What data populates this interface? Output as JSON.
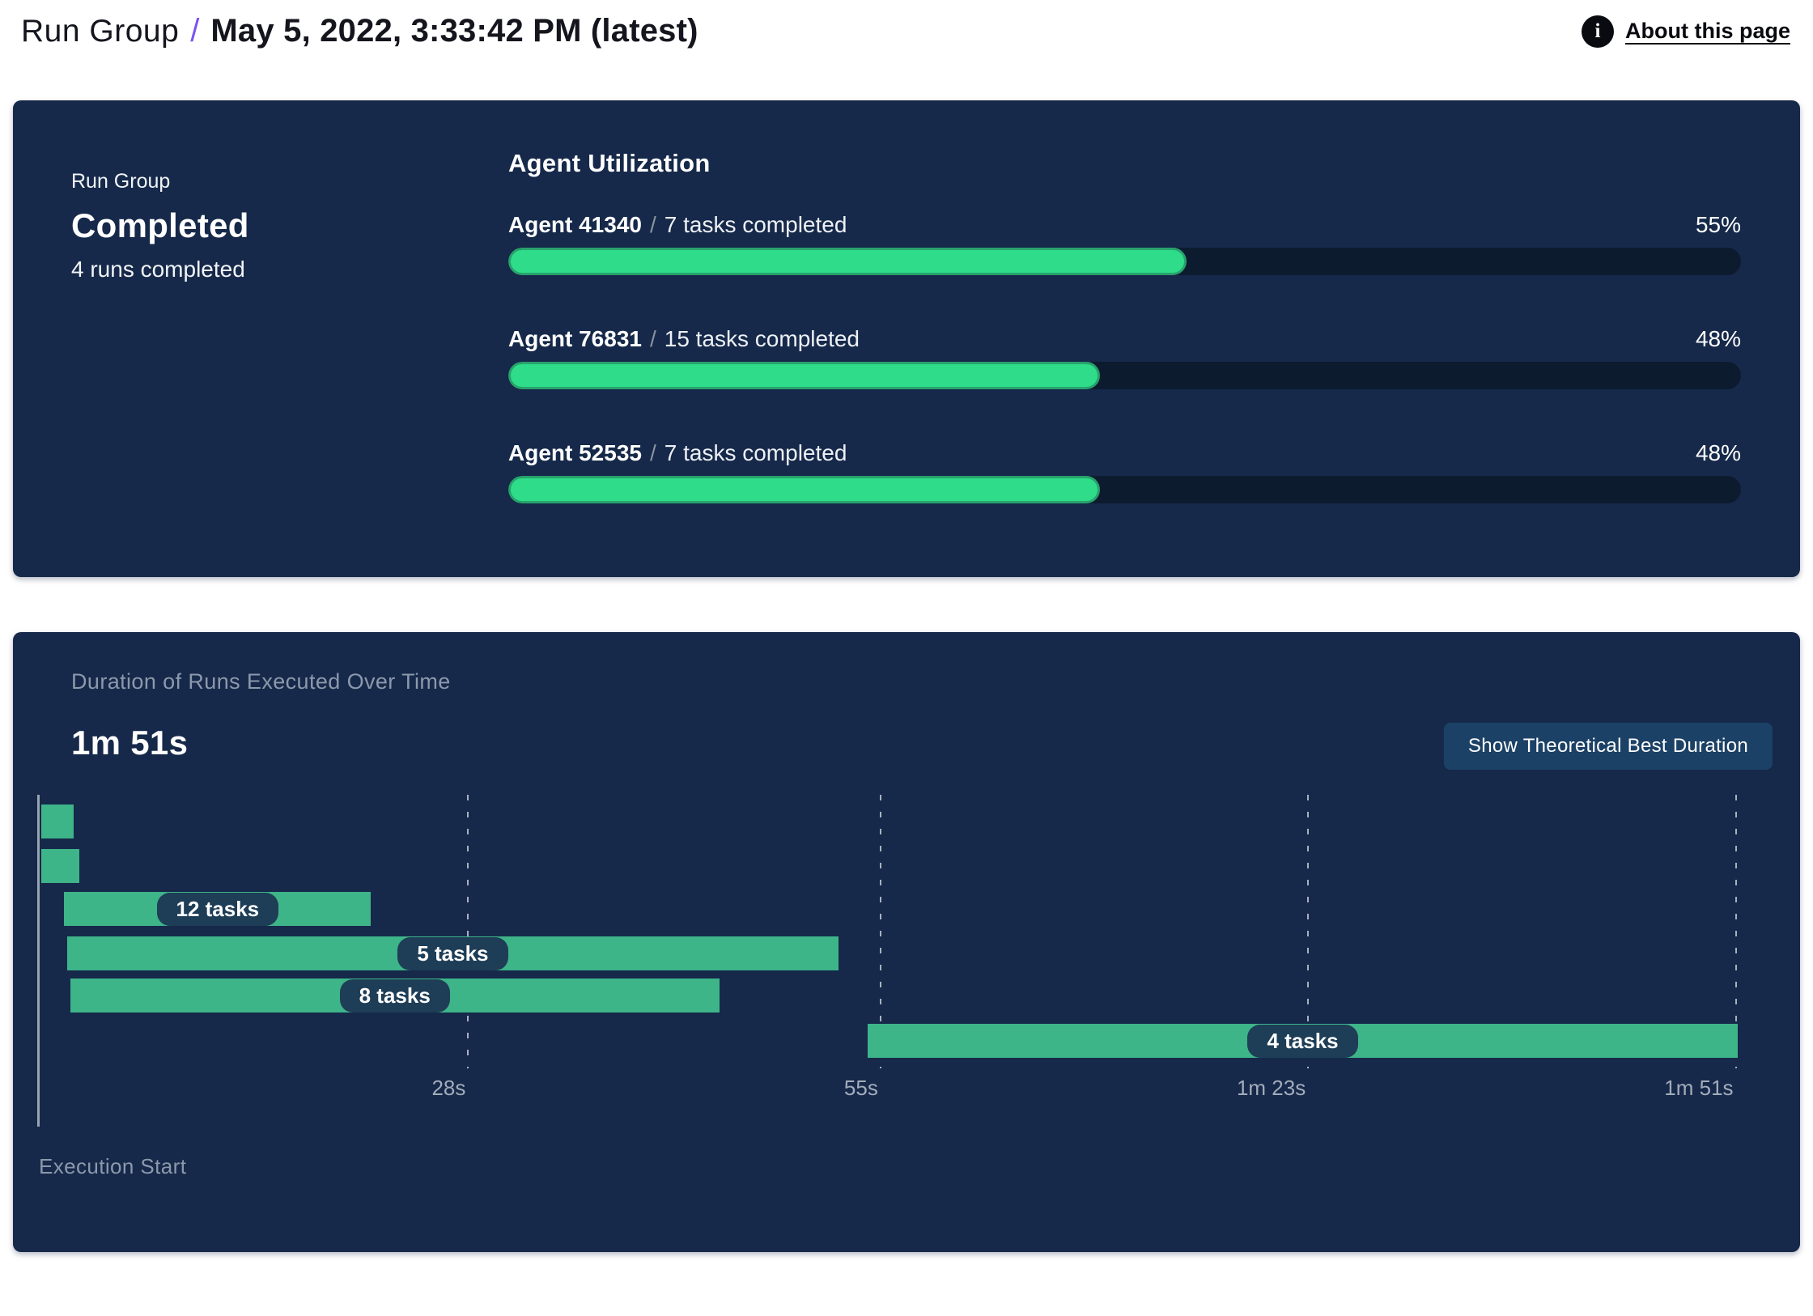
{
  "header": {
    "breadcrumb_root": "Run Group",
    "separator": "/",
    "title": "May 5, 2022, 3:33:42 PM (latest)",
    "info_icon_glyph": "i",
    "about_link": "About this page"
  },
  "colors": {
    "panel_navy": "#16294A",
    "progress_track": "#0D1B2F",
    "progress_fill_green": "#2EDC8A",
    "progress_fill_border": "#28A26C",
    "gantt_bar_green": "#3EB489",
    "badge_navy": "#1E3D56",
    "button_navy": "#1C4166",
    "breadcrumb_slash_purple": "#7C52F4",
    "muted_gray": "#8C99AC"
  },
  "summary_panel": {
    "label": "Run Group",
    "status": "Completed",
    "runs_completed": "4 runs completed",
    "utilization_title": "Agent Utilization",
    "agents": [
      {
        "name": "Agent 41340",
        "separator": "/",
        "tasks": "7 tasks completed",
        "percent": "55%",
        "value": 55
      },
      {
        "name": "Agent 76831",
        "separator": "/",
        "tasks": "15 tasks completed",
        "percent": "48%",
        "value": 48
      },
      {
        "name": "Agent 52535",
        "separator": "/",
        "tasks": "7 tasks completed",
        "percent": "48%",
        "value": 48
      }
    ]
  },
  "duration_panel": {
    "title": "Duration of Runs Executed Over Time",
    "total_duration": "1m 51s",
    "button_label": "Show Theoretical Best Duration",
    "origin_label": "Execution Start",
    "ticks": [
      {
        "label": "28s",
        "seconds": 28
      },
      {
        "label": "55s",
        "seconds": 55
      },
      {
        "label": "1m 23s",
        "seconds": 83
      },
      {
        "label": "1m 51s",
        "seconds": 111
      }
    ],
    "bars": [
      {
        "label": "",
        "start_s": 0.1,
        "end_s": 2.2
      },
      {
        "label": "",
        "start_s": 0.1,
        "end_s": 2.6
      },
      {
        "label": "12 tasks",
        "start_s": 1.6,
        "end_s": 21.7
      },
      {
        "label": "5 tasks",
        "start_s": 1.8,
        "end_s": 52.3
      },
      {
        "label": "8 tasks",
        "start_s": 2.0,
        "end_s": 44.5
      },
      {
        "label": "4 tasks",
        "start_s": 54.2,
        "end_s": 111.2
      }
    ]
  },
  "chart_data": [
    {
      "type": "bar",
      "orientation": "horizontal",
      "title": "Agent Utilization",
      "categories": [
        "Agent 41340",
        "Agent 76831",
        "Agent 52535"
      ],
      "values": [
        55,
        48,
        48
      ],
      "value_unit": "%",
      "annotations": [
        "7 tasks completed",
        "15 tasks completed",
        "7 tasks completed"
      ],
      "xlim": [
        0,
        100
      ],
      "grid": false
    },
    {
      "type": "bar",
      "orientation": "horizontal-gantt",
      "title": "Duration of Runs Executed Over Time",
      "total_duration_label": "1m 51s",
      "x_axis_ticks_seconds": [
        28,
        55,
        83,
        111
      ],
      "x_axis_tick_labels": [
        "28s",
        "55s",
        "1m 23s",
        "1m 51s"
      ],
      "x_axis_origin_label": "Execution Start",
      "xlim_seconds": [
        0,
        111
      ],
      "grid": "vertical-dashed",
      "series": [
        {
          "name": "run-1",
          "tasks": null,
          "start_s": 0.1,
          "end_s": 2.2
        },
        {
          "name": "run-2",
          "tasks": null,
          "start_s": 0.1,
          "end_s": 2.6
        },
        {
          "name": "run-3",
          "tasks": 12,
          "start_s": 1.6,
          "end_s": 21.7
        },
        {
          "name": "run-4",
          "tasks": 5,
          "start_s": 1.8,
          "end_s": 52.3
        },
        {
          "name": "run-5",
          "tasks": 8,
          "start_s": 2.0,
          "end_s": 44.5
        },
        {
          "name": "run-6",
          "tasks": 4,
          "start_s": 54.2,
          "end_s": 111.2
        }
      ]
    }
  ]
}
